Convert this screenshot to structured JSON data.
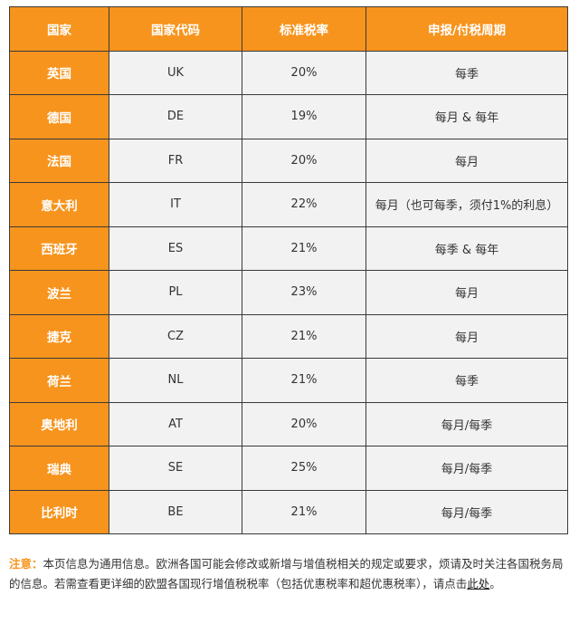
{
  "table": {
    "headers": [
      "国家",
      "国家代码",
      "标准税率",
      "申报/付税周期"
    ],
    "rows": [
      {
        "country": "英国",
        "code": "UK",
        "rate": "20%",
        "period": "每季"
      },
      {
        "country": "德国",
        "code": "DE",
        "rate": "19%",
        "period": "每月 & 每年"
      },
      {
        "country": "法国",
        "code": "FR",
        "rate": "20%",
        "period": "每月"
      },
      {
        "country": "意大利",
        "code": "IT",
        "rate": "22%",
        "period": "每月（也可每季，须付1%的利息）"
      },
      {
        "country": "西班牙",
        "code": "ES",
        "rate": "21%",
        "period": "每季 & 每年"
      },
      {
        "country": "波兰",
        "code": "PL",
        "rate": "23%",
        "period": "每月"
      },
      {
        "country": "捷克",
        "code": "CZ",
        "rate": "21%",
        "period": "每月"
      },
      {
        "country": "荷兰",
        "code": "NL",
        "rate": "21%",
        "period": "每季"
      },
      {
        "country": "奥地利",
        "code": "AT",
        "rate": "20%",
        "period": "每月/每季"
      },
      {
        "country": "瑞典",
        "code": "SE",
        "rate": "25%",
        "period": "每月/每季"
      },
      {
        "country": "比利时",
        "code": "BE",
        "rate": "21%",
        "period": "每月/每季"
      }
    ]
  },
  "note": {
    "label": "注意：",
    "text": "本页信息为通用信息。欧洲各国可能会修改或新增与增值税相关的规定或要求，烦请及时关注各国税务局的信息。若需查看更详细的欧盟各国现行增值税税率（包括优惠税率和超优惠税率），请点击",
    "link": "此处",
    "end": "。"
  },
  "colors": {
    "accent": "#f7941d",
    "cell_bg": "#f2f2f2",
    "border": "#3a3a3a"
  }
}
